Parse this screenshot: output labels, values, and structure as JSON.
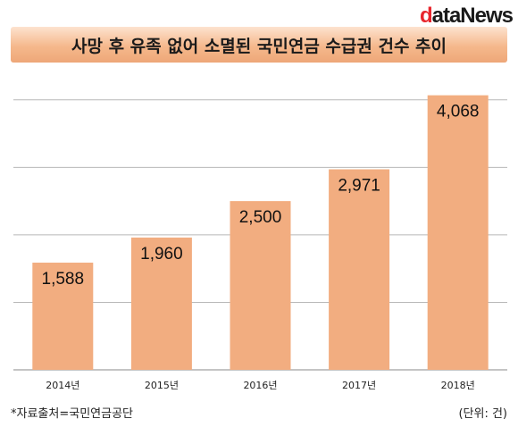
{
  "brand": {
    "logo_d": "d",
    "logo_rest": "ataNews"
  },
  "header": {
    "title": "사망 후 유족 없어 소멸된 국민연금 수급권 건수 추이"
  },
  "footer": {
    "source": "*자료출처=국민연금공단",
    "unit": "(단위: 건)"
  },
  "colors": {
    "bar": "#f2ad80",
    "grid": "#b8b8b8",
    "axis": "#8a8a8a"
  },
  "chart_data": {
    "type": "bar",
    "categories": [
      "2014년",
      "2015년",
      "2016년",
      "2017년",
      "2018년"
    ],
    "values": [
      1588,
      1960,
      2500,
      2971,
      4068
    ],
    "value_labels": [
      "1,588",
      "1,960",
      "2,500",
      "2,971",
      "4,068"
    ],
    "ylim": [
      0,
      4500
    ],
    "grid": true,
    "title": "사망 후 유족 없어 소멸된 국민연금 수급권 건수 추이"
  }
}
